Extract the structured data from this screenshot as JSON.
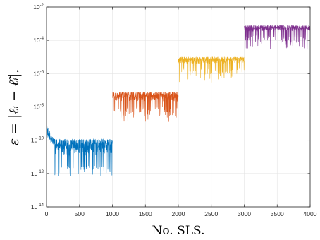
{
  "chart_data": {
    "type": "line",
    "title": "",
    "xlabel": "No. SLS.",
    "ylabel": "ε = |ℓᵢ − ℓ̃ᵢ|.",
    "xlim": [
      0,
      4000
    ],
    "ylim": [
      1e-14,
      0.01
    ],
    "yscale": "log",
    "grid": true,
    "x_ticks": [
      0,
      500,
      1000,
      1500,
      2000,
      2500,
      3000,
      3500,
      4000
    ],
    "y_ticks": [
      {
        "mant": "10",
        "exp": "-14",
        "value": 1e-14
      },
      {
        "mant": "10",
        "exp": "-12",
        "value": 1e-12
      },
      {
        "mant": "10",
        "exp": "-10",
        "value": 1e-10
      },
      {
        "mant": "10",
        "exp": "-8",
        "value": 1e-08
      },
      {
        "mant": "10",
        "exp": "-6",
        "value": 1e-06
      },
      {
        "mant": "10",
        "exp": "-4",
        "value": 0.0001
      },
      {
        "mant": "10",
        "exp": "-2",
        "value": 0.01
      }
    ],
    "series": [
      {
        "color": "#0072BD",
        "x_range": [
          1,
          1000
        ],
        "typical_range": [
          3e-12,
          1.2e-10
        ],
        "min_dip": 7e-13,
        "initial_peak": 8e-10,
        "initial_decay_to": 1e-10,
        "initial_decay_length": 120
      },
      {
        "color": "#D95319",
        "x_range": [
          1001,
          2000
        ],
        "typical_range": [
          1e-08,
          8e-08
        ],
        "min_dip": 1.3e-09
      },
      {
        "color": "#EDB120",
        "x_range": [
          2001,
          3000
        ],
        "typical_range": [
          2e-06,
          1e-05
        ],
        "min_dip": 3e-07
      },
      {
        "color": "#7E2F8E",
        "x_range": [
          3001,
          4000
        ],
        "typical_range": [
          0.0002,
          0.0008
        ],
        "min_dip": 3e-05
      }
    ]
  }
}
